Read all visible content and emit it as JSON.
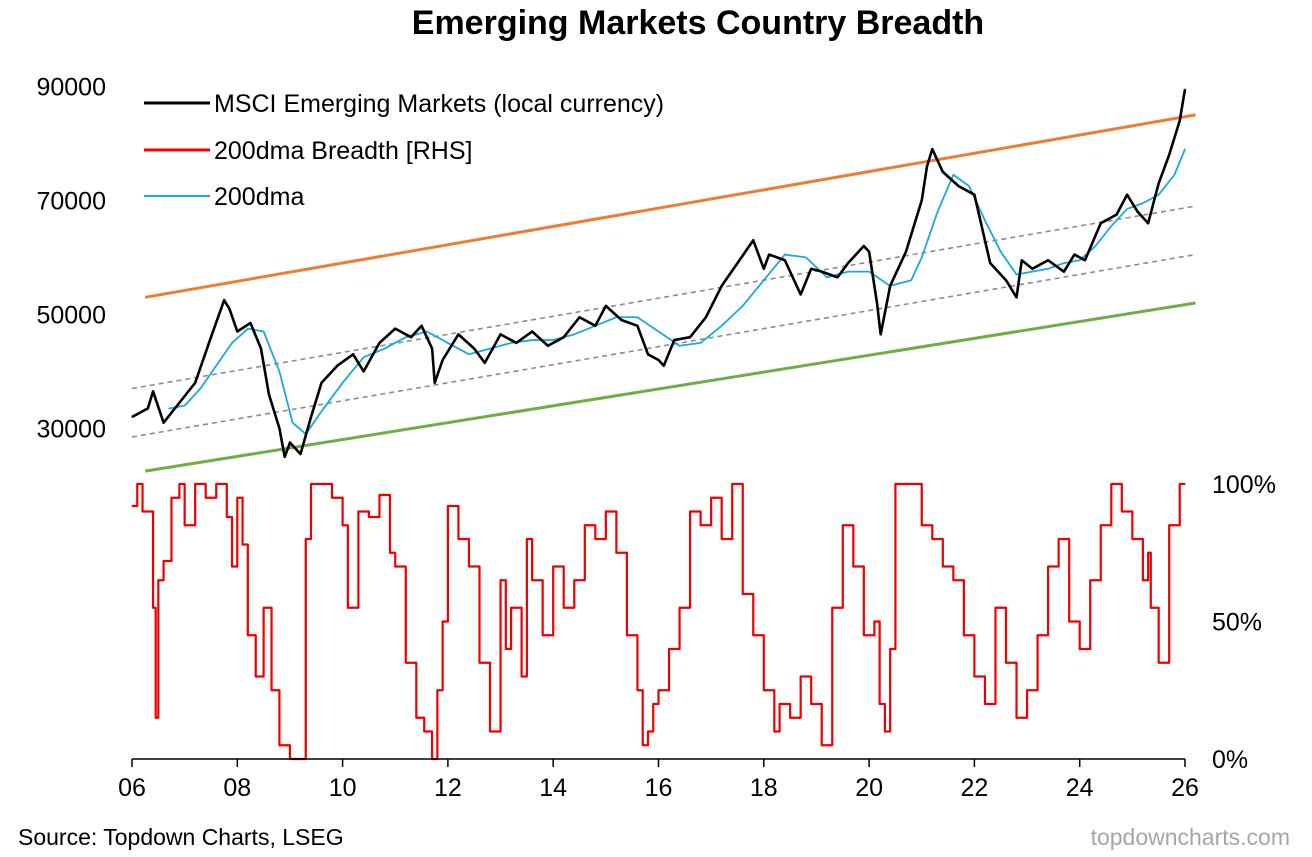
{
  "chart_data": {
    "type": "line",
    "title": "Emerging Markets Country Breadth",
    "source": "Source: Topdown Charts, LSEG",
    "watermark": "topdowncharts.com",
    "x_ticks": [
      "06",
      "08",
      "10",
      "12",
      "14",
      "16",
      "18",
      "20",
      "22",
      "24",
      "26"
    ],
    "x_range": [
      2006,
      2026
    ],
    "y_left": {
      "ticks": [
        "90000",
        "70000",
        "50000",
        "30000"
      ],
      "tick_values": [
        90000,
        70000,
        50000,
        30000
      ],
      "range": [
        22000,
        92000
      ]
    },
    "y_right": {
      "ticks": [
        "100%",
        "50%",
        "0%"
      ],
      "tick_values": [
        100,
        50,
        0
      ],
      "range": [
        0,
        100
      ]
    },
    "legend": [
      {
        "label": "MSCI Emerging Markets (local currency)",
        "color": "#000000"
      },
      {
        "label": "200dma Breadth [RHS]",
        "color": "#ee0000"
      },
      {
        "label": "200dma",
        "color": "#1ba8e0"
      }
    ],
    "colors": {
      "msci": "#000000",
      "dma": "#1ba8e0",
      "breadth": "#ee0000",
      "upper_channel": "#ed7d31",
      "lower_channel": "#70ad47",
      "mid_channel": "#8c8c8c"
    },
    "series": [
      {
        "name": "MSCI Emerging Markets (local currency)",
        "axis": "left",
        "x": [
          2006.0,
          2006.3,
          2006.4,
          2006.6,
          2006.9,
          2007.2,
          2007.5,
          2007.75,
          2007.85,
          2008.0,
          2008.25,
          2008.45,
          2008.6,
          2008.8,
          2008.9,
          2009.0,
          2009.2,
          2009.4,
          2009.6,
          2009.9,
          2010.2,
          2010.4,
          2010.7,
          2011.0,
          2011.3,
          2011.5,
          2011.7,
          2011.75,
          2011.9,
          2012.2,
          2012.5,
          2012.7,
          2013.0,
          2013.3,
          2013.6,
          2013.9,
          2014.2,
          2014.5,
          2014.8,
          2015.0,
          2015.3,
          2015.6,
          2015.8,
          2016.0,
          2016.1,
          2016.3,
          2016.6,
          2016.9,
          2017.2,
          2017.5,
          2017.8,
          2018.0,
          2018.1,
          2018.4,
          2018.7,
          2018.9,
          2019.1,
          2019.4,
          2019.6,
          2019.9,
          2020.0,
          2020.15,
          2020.22,
          2020.4,
          2020.7,
          2021.0,
          2021.1,
          2021.2,
          2021.4,
          2021.7,
          2022.0,
          2022.3,
          2022.6,
          2022.8,
          2022.9,
          2023.1,
          2023.4,
          2023.7,
          2023.9,
          2024.1,
          2024.4,
          2024.7,
          2024.9,
          2025.1,
          2025.3,
          2025.5,
          2025.7,
          2025.9,
          2026.0
        ],
        "y": [
          32000,
          33500,
          36500,
          31000,
          34500,
          38000,
          46000,
          52500,
          51000,
          47000,
          48500,
          44000,
          36000,
          30000,
          25000,
          27500,
          25500,
          32000,
          38000,
          41000,
          43000,
          40000,
          45000,
          47500,
          46000,
          48000,
          44000,
          38000,
          42000,
          46500,
          44000,
          41500,
          46500,
          45000,
          47000,
          44500,
          46000,
          49500,
          48000,
          51500,
          49000,
          48000,
          43000,
          42000,
          41000,
          45500,
          46000,
          49500,
          55000,
          59000,
          63000,
          58000,
          60500,
          59500,
          53500,
          58000,
          57500,
          56500,
          59000,
          62000,
          61000,
          52000,
          46500,
          55000,
          61000,
          70000,
          76000,
          79000,
          75000,
          72500,
          71000,
          59000,
          56000,
          53000,
          59500,
          58000,
          59500,
          57500,
          60500,
          59500,
          66000,
          67500,
          71000,
          68000,
          66000,
          73000,
          78000,
          84000,
          89500
        ]
      },
      {
        "name": "200dma",
        "axis": "left",
        "x": [
          2006.7,
          2007.0,
          2007.3,
          2007.6,
          2007.9,
          2008.2,
          2008.5,
          2008.8,
          2009.05,
          2009.3,
          2009.6,
          2010.0,
          2010.4,
          2010.8,
          2011.2,
          2011.6,
          2012.0,
          2012.4,
          2012.8,
          2013.2,
          2013.6,
          2014.0,
          2014.4,
          2014.8,
          2015.2,
          2015.6,
          2016.0,
          2016.4,
          2016.8,
          2017.2,
          2017.6,
          2018.0,
          2018.4,
          2018.8,
          2019.2,
          2019.6,
          2020.0,
          2020.4,
          2020.8,
          2021.0,
          2021.3,
          2021.6,
          2021.9,
          2022.2,
          2022.5,
          2022.8,
          2023.1,
          2023.4,
          2023.7,
          2024.0,
          2024.3,
          2024.6,
          2024.9,
          2025.2,
          2025.5,
          2025.8,
          2026.0
        ],
        "y": [
          33500,
          34000,
          37000,
          41000,
          45000,
          47500,
          47000,
          40000,
          31000,
          29000,
          33000,
          38000,
          42500,
          44000,
          46000,
          47000,
          45000,
          43000,
          44000,
          45000,
          45500,
          45500,
          46500,
          48000,
          49500,
          49500,
          47000,
          44500,
          45000,
          48000,
          51500,
          56000,
          60500,
          60000,
          56500,
          57500,
          57500,
          55000,
          56000,
          60000,
          68000,
          74500,
          72500,
          66500,
          61000,
          57000,
          57500,
          58000,
          59000,
          59500,
          62000,
          65500,
          68500,
          69500,
          71000,
          74500,
          79000
        ]
      },
      {
        "name": "200dma Breadth [RHS]",
        "axis": "right",
        "x": [
          2006.0,
          2006.1,
          2006.2,
          2006.4,
          2006.45,
          2006.5,
          2006.6,
          2006.75,
          2006.9,
          2007.0,
          2007.2,
          2007.4,
          2007.6,
          2007.8,
          2007.9,
          2008.0,
          2008.1,
          2008.2,
          2008.35,
          2008.5,
          2008.65,
          2008.8,
          2009.0,
          2009.2,
          2009.3,
          2009.4,
          2009.6,
          2009.8,
          2010.0,
          2010.1,
          2010.3,
          2010.5,
          2010.7,
          2010.9,
          2011.0,
          2011.2,
          2011.4,
          2011.55,
          2011.7,
          2011.8,
          2011.9,
          2012.0,
          2012.2,
          2012.4,
          2012.6,
          2012.8,
          2013.0,
          2013.1,
          2013.2,
          2013.4,
          2013.5,
          2013.6,
          2013.8,
          2014.0,
          2014.2,
          2014.4,
          2014.6,
          2014.8,
          2015.0,
          2015.2,
          2015.4,
          2015.6,
          2015.7,
          2015.8,
          2015.9,
          2016.0,
          2016.2,
          2016.4,
          2016.6,
          2016.8,
          2017.0,
          2017.2,
          2017.4,
          2017.6,
          2017.8,
          2018.0,
          2018.2,
          2018.3,
          2018.5,
          2018.7,
          2018.9,
          2019.1,
          2019.3,
          2019.5,
          2019.7,
          2019.9,
          2020.1,
          2020.2,
          2020.3,
          2020.4,
          2020.5,
          2020.6,
          2020.8,
          2021.0,
          2021.2,
          2021.4,
          2021.6,
          2021.8,
          2022.0,
          2022.2,
          2022.4,
          2022.6,
          2022.8,
          2023.0,
          2023.2,
          2023.4,
          2023.6,
          2023.8,
          2024.0,
          2024.2,
          2024.4,
          2024.6,
          2024.8,
          2025.0,
          2025.2,
          2025.3,
          2025.35,
          2025.5,
          2025.7,
          2025.9,
          2026.0
        ],
        "y": [
          92,
          100,
          90,
          55,
          15,
          65,
          72,
          95,
          100,
          85,
          100,
          95,
          100,
          88,
          70,
          95,
          78,
          45,
          30,
          55,
          25,
          5,
          0,
          0,
          80,
          100,
          100,
          95,
          85,
          55,
          90,
          88,
          96,
          75,
          70,
          35,
          15,
          10,
          0,
          25,
          50,
          92,
          80,
          70,
          35,
          10,
          65,
          40,
          55,
          30,
          80,
          65,
          45,
          70,
          55,
          65,
          85,
          80,
          90,
          75,
          45,
          25,
          5,
          10,
          20,
          25,
          40,
          55,
          90,
          85,
          95,
          80,
          100,
          60,
          45,
          25,
          10,
          20,
          15,
          30,
          20,
          5,
          55,
          85,
          70,
          45,
          50,
          20,
          10,
          40,
          100,
          100,
          100,
          85,
          80,
          70,
          65,
          45,
          30,
          20,
          55,
          35,
          15,
          25,
          45,
          70,
          80,
          50,
          40,
          65,
          85,
          100,
          90,
          80,
          65,
          75,
          55,
          35,
          85,
          100,
          100
        ]
      }
    ],
    "channel_lines": [
      {
        "name": "upper",
        "x": [
          2006.25,
          2026.2
        ],
        "y": [
          53000,
          85000
        ]
      },
      {
        "name": "mid-upper",
        "x": [
          2006.0,
          2026.2
        ],
        "y": [
          37000,
          69000
        ]
      },
      {
        "name": "mid-lower",
        "x": [
          2006.0,
          2026.2
        ],
        "y": [
          28500,
          60500
        ]
      },
      {
        "name": "lower",
        "x": [
          2006.25,
          2026.2
        ],
        "y": [
          22500,
          52000
        ]
      }
    ]
  }
}
